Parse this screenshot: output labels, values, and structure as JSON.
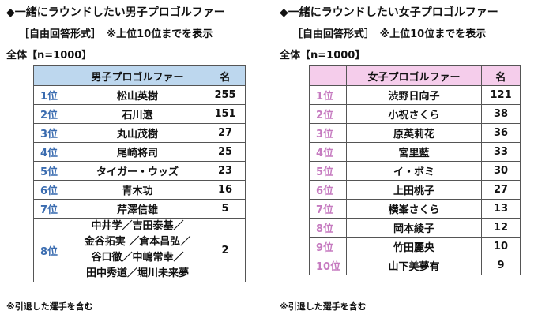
{
  "left": {
    "title": "◆一緒にラウンドしたい男子プロゴルファー",
    "subtitle": "［自由回答形式］　※上位10位までを表示",
    "total": "全体【n=1000】",
    "headers": {
      "rank": "",
      "name": "男子プロゴルファー",
      "count": "名"
    },
    "rows": [
      {
        "rank": "1位",
        "name": "松山英樹",
        "count": "255"
      },
      {
        "rank": "2位",
        "name": "石川遼",
        "count": "151"
      },
      {
        "rank": "3位",
        "name": "丸山茂樹",
        "count": "27"
      },
      {
        "rank": "4位",
        "name": "尾崎将司",
        "count": "25"
      },
      {
        "rank": "5位",
        "name": "タイガー・ウッズ",
        "count": "23"
      },
      {
        "rank": "6位",
        "name": "青木功",
        "count": "16"
      },
      {
        "rank": "7位",
        "name": "芹澤信雄",
        "count": "5"
      }
    ],
    "row8": {
      "rank": "8位",
      "names": [
        "中井学／吉田泰基／",
        "金谷拓実 ／倉本昌弘／",
        "谷口徹／中嶋常幸／",
        "田中秀道／堀川未来夢"
      ],
      "count": "2"
    },
    "note": "※引退した選手を含む"
  },
  "right": {
    "title": "◆一緒にラウンドしたい女子プロゴルファー",
    "subtitle": "［自由回答形式］　※上位10位までを表示",
    "total": "全体【n=1000】",
    "headers": {
      "rank": "",
      "name": "女子プロゴルファー",
      "count": "名"
    },
    "rows": [
      {
        "rank": "1位",
        "name": "渋野日向子",
        "count": "121"
      },
      {
        "rank": "2位",
        "name": "小祝さくら",
        "count": "38"
      },
      {
        "rank": "3位",
        "name": "原英莉花",
        "count": "36"
      },
      {
        "rank": "4位",
        "name": "宮里藍",
        "count": "33"
      },
      {
        "rank": "5位",
        "name": "イ・ボミ",
        "count": "30"
      },
      {
        "rank": "6位",
        "name": "上田桃子",
        "count": "27"
      },
      {
        "rank": "7位",
        "name": "横峯さくら",
        "count": "13"
      },
      {
        "rank": "8位",
        "name": "岡本綾子",
        "count": "12"
      },
      {
        "rank": "9位",
        "name": "竹田麗央",
        "count": "10"
      },
      {
        "rank": "10位",
        "name": "山下美夢有",
        "count": "9"
      }
    ],
    "note": "※引退した選手を含む"
  }
}
